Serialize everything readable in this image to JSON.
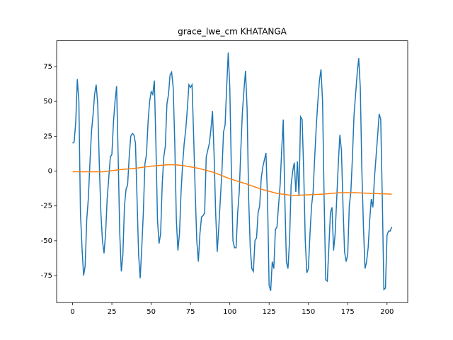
{
  "chart_data": {
    "type": "line",
    "title": "grace_lwe_cm KHATANGA",
    "x": [
      0,
      1,
      2,
      3,
      4,
      5,
      6,
      7,
      8,
      9,
      10,
      11,
      12,
      13,
      14,
      15,
      16,
      17,
      18,
      19,
      20,
      21,
      22,
      23,
      24,
      25,
      26,
      27,
      28,
      29,
      30,
      31,
      32,
      33,
      34,
      35,
      36,
      37,
      38,
      39,
      40,
      41,
      42,
      43,
      44,
      45,
      46,
      47,
      48,
      49,
      50,
      51,
      52,
      53,
      54,
      55,
      56,
      57,
      58,
      59,
      60,
      61,
      62,
      63,
      64,
      65,
      66,
      67,
      68,
      69,
      70,
      71,
      72,
      73,
      74,
      75,
      76,
      77,
      78,
      79,
      80,
      81,
      82,
      83,
      84,
      85,
      86,
      87,
      88,
      89,
      90,
      91,
      92,
      93,
      94,
      95,
      96,
      97,
      98,
      99,
      100,
      101,
      102,
      103,
      104,
      105,
      106,
      107,
      108,
      109,
      110,
      111,
      112,
      113,
      114,
      115,
      116,
      117,
      118,
      119,
      120,
      121,
      122,
      123,
      124,
      125,
      126,
      127,
      128,
      129,
      130,
      131,
      132,
      133,
      134,
      135,
      136,
      137,
      138,
      139,
      140,
      141,
      142,
      143,
      144,
      145,
      146,
      147,
      148,
      149,
      150,
      151,
      152,
      153,
      154,
      155,
      156,
      157,
      158,
      159,
      160,
      161,
      162,
      163,
      164,
      165,
      166,
      167,
      168,
      169,
      170,
      171,
      172,
      173,
      174,
      175,
      176,
      177,
      178,
      179,
      180,
      181,
      182,
      183,
      184,
      185,
      186,
      187,
      188,
      189,
      190,
      191,
      192,
      193,
      194,
      195,
      196,
      197,
      198,
      199,
      200,
      201,
      202,
      203
    ],
    "series": [
      {
        "color": "#1f77b4",
        "values": [
          20,
          21,
          35,
          66,
          50,
          -30,
          -55,
          -75,
          -68,
          -35,
          -20,
          5,
          28,
          40,
          55,
          62,
          48,
          5,
          -30,
          -50,
          -59,
          -45,
          -20,
          -5,
          10,
          12,
          35,
          50,
          61,
          10,
          -45,
          -72,
          -60,
          -25,
          -13,
          -10,
          10,
          25,
          27,
          26,
          20,
          -20,
          -60,
          -77,
          -55,
          -30,
          5,
          12,
          35,
          50,
          57,
          55,
          65,
          20,
          -35,
          -52,
          -45,
          -10,
          10,
          18,
          48,
          55,
          69,
          71,
          60,
          20,
          -35,
          -57,
          -45,
          -15,
          5,
          20,
          30,
          45,
          62,
          60,
          62,
          25,
          -15,
          -50,
          -65,
          -45,
          -33,
          -32,
          -30,
          10,
          15,
          20,
          30,
          43,
          12,
          -30,
          -58,
          -40,
          -20,
          0,
          28,
          33,
          60,
          85,
          60,
          0,
          -50,
          -55,
          -55,
          -30,
          -15,
          15,
          42,
          58,
          72,
          45,
          -20,
          -55,
          -70,
          -72,
          -50,
          -48,
          -30,
          -25,
          -5,
          3,
          8,
          13,
          -20,
          -82,
          -86,
          -65,
          -70,
          -42,
          -40,
          -25,
          -10,
          15,
          37,
          -20,
          -65,
          -70,
          -50,
          -10,
          0,
          6,
          -15,
          7,
          -18,
          39,
          37,
          0,
          -50,
          -73,
          -70,
          -45,
          -25,
          -15,
          10,
          32,
          50,
          65,
          73,
          50,
          -20,
          -78,
          -79,
          -55,
          -30,
          -26,
          -57,
          -45,
          -20,
          5,
          26,
          15,
          -25,
          -58,
          -65,
          -60,
          -25,
          -15,
          10,
          40,
          55,
          70,
          81,
          60,
          0,
          -40,
          -70,
          -65,
          -55,
          -35,
          -20,
          -26,
          -5,
          10,
          25,
          41,
          37,
          -20,
          -85,
          -84,
          -46,
          -43,
          -43,
          -40
        ]
      },
      {
        "color": "#ff7f0e",
        "values": [
          -0.5,
          -0.5,
          -0.5,
          -0.5,
          -0.5,
          -0.5,
          -0.5,
          -0.5,
          -0.5,
          -0.5,
          -0.5,
          -0.5,
          -0.5,
          -0.5,
          -0.5,
          -0.5,
          -0.5,
          -0.5,
          -0.5,
          -0.5,
          -0.5,
          -0.4,
          -0.2,
          -0.1,
          0.1,
          0.3,
          0.4,
          0.6,
          0.7,
          0.9,
          1.0,
          1.1,
          1.2,
          1.3,
          1.4,
          1.5,
          1.6,
          1.7,
          1.8,
          1.9,
          2.0,
          2.2,
          2.3,
          2.5,
          2.6,
          2.8,
          2.9,
          3.1,
          3.2,
          3.4,
          3.5,
          3.6,
          3.7,
          3.8,
          3.9,
          4.0,
          4.1,
          4.2,
          4.3,
          4.4,
          4.5,
          4.5,
          4.5,
          4.5,
          4.5,
          4.5,
          4.4,
          4.3,
          4.2,
          4.1,
          4.0,
          3.8,
          3.6,
          3.4,
          3.2,
          3.0,
          2.8,
          2.6,
          2.4,
          2.2,
          2.0,
          1.7,
          1.4,
          1.1,
          0.8,
          0.5,
          0.2,
          -0.1,
          -0.4,
          -0.7,
          -1.0,
          -1.5,
          -1.9,
          -2.4,
          -2.8,
          -3.3,
          -3.7,
          -4.2,
          -4.6,
          -5.1,
          -5.5,
          -5.9,
          -6.2,
          -6.6,
          -6.9,
          -7.3,
          -7.6,
          -8.0,
          -8.3,
          -8.7,
          -9.0,
          -9.4,
          -9.8,
          -10.2,
          -10.6,
          -11.0,
          -11.4,
          -11.8,
          -12.2,
          -12.6,
          -13.0,
          -13.3,
          -13.6,
          -13.9,
          -14.2,
          -14.5,
          -14.8,
          -15.1,
          -15.4,
          -15.7,
          -16.0,
          -16.2,
          -16.3,
          -16.5,
          -16.6,
          -16.8,
          -16.9,
          -17.1,
          -17.2,
          -17.4,
          -17.5,
          -17.5,
          -17.4,
          -17.4,
          -17.3,
          -17.3,
          -17.2,
          -17.2,
          -17.1,
          -17.1,
          -17.0,
          -17.0,
          -16.9,
          -16.9,
          -16.8,
          -16.8,
          -16.7,
          -16.7,
          -16.6,
          -16.6,
          -16.5,
          -16.4,
          -16.3,
          -16.2,
          -16.1,
          -16.0,
          -15.9,
          -15.8,
          -15.7,
          -15.6,
          -15.5,
          -15.5,
          -15.5,
          -15.5,
          -15.5,
          -15.5,
          -15.5,
          -15.5,
          -15.5,
          -15.5,
          -15.5,
          -15.6,
          -15.6,
          -15.7,
          -15.7,
          -15.8,
          -15.8,
          -15.9,
          -15.9,
          -16.0,
          -16.0,
          -16.0,
          -16.1,
          -16.1,
          -16.2,
          -16.2,
          -16.3,
          -16.3,
          -16.3,
          -16.4,
          -16.4,
          -16.5,
          -16.5,
          -16.5
        ]
      }
    ],
    "xlim": [
      -10.15,
      213.15
    ],
    "xticks": [
      0,
      25,
      50,
      75,
      100,
      125,
      150,
      175,
      200
    ],
    "ylim": [
      -94.4,
      93.5
    ],
    "yticks": [
      -75,
      -50,
      -25,
      0,
      25,
      50,
      75
    ]
  }
}
